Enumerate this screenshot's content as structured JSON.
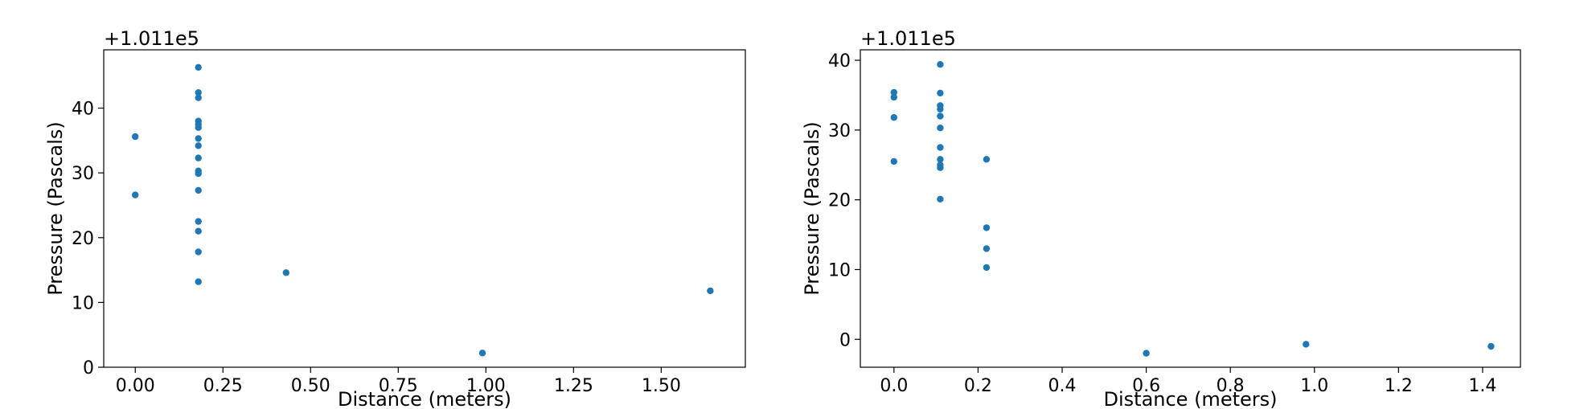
{
  "chart_data": [
    {
      "type": "scatter",
      "title": "",
      "xlabel": "Distance (meters)",
      "ylabel": "Pressure (Pascals)",
      "offset_text": "+1.011e5",
      "xlim": [
        -0.09,
        1.74
      ],
      "ylim": [
        0,
        49
      ],
      "xticks": [
        0.0,
        0.25,
        0.5,
        0.75,
        1.0,
        1.25,
        1.5
      ],
      "xtick_labels": [
        "0.00",
        "0.25",
        "0.50",
        "0.75",
        "1.00",
        "1.25",
        "1.50"
      ],
      "yticks": [
        0,
        10,
        20,
        30,
        40
      ],
      "ytick_labels": [
        "0",
        "10",
        "20",
        "30",
        "40"
      ],
      "color": "#1f77b4",
      "grid": false,
      "points": [
        {
          "x": 0.0,
          "y": 35.6
        },
        {
          "x": 0.0,
          "y": 26.6
        },
        {
          "x": 0.18,
          "y": 46.3
        },
        {
          "x": 0.18,
          "y": 42.4
        },
        {
          "x": 0.18,
          "y": 41.6
        },
        {
          "x": 0.18,
          "y": 38.0
        },
        {
          "x": 0.18,
          "y": 37.5
        },
        {
          "x": 0.18,
          "y": 37.0
        },
        {
          "x": 0.18,
          "y": 35.3
        },
        {
          "x": 0.18,
          "y": 34.2
        },
        {
          "x": 0.18,
          "y": 32.3
        },
        {
          "x": 0.18,
          "y": 30.3
        },
        {
          "x": 0.18,
          "y": 29.9
        },
        {
          "x": 0.18,
          "y": 27.3
        },
        {
          "x": 0.18,
          "y": 22.5
        },
        {
          "x": 0.18,
          "y": 21.0
        },
        {
          "x": 0.18,
          "y": 17.8
        },
        {
          "x": 0.18,
          "y": 13.2
        },
        {
          "x": 0.43,
          "y": 14.6
        },
        {
          "x": 0.99,
          "y": 2.2
        },
        {
          "x": 1.64,
          "y": 11.8
        }
      ]
    },
    {
      "type": "scatter",
      "title": "",
      "xlabel": "Distance (meters)",
      "ylabel": "Pressure (Pascals)",
      "offset_text": "+1.011e5",
      "xlim": [
        -0.08,
        1.49
      ],
      "ylim": [
        -4,
        41.5
      ],
      "xticks": [
        0.0,
        0.2,
        0.4,
        0.6,
        0.8,
        1.0,
        1.2,
        1.4
      ],
      "xtick_labels": [
        "0.0",
        "0.2",
        "0.4",
        "0.6",
        "0.8",
        "1.0",
        "1.2",
        "1.4"
      ],
      "yticks": [
        0,
        10,
        20,
        30,
        40
      ],
      "ytick_labels": [
        "0",
        "10",
        "20",
        "30",
        "40"
      ],
      "color": "#1f77b4",
      "grid": false,
      "points": [
        {
          "x": 0.0,
          "y": 35.4
        },
        {
          "x": 0.0,
          "y": 34.7
        },
        {
          "x": 0.0,
          "y": 31.8
        },
        {
          "x": 0.0,
          "y": 25.5
        },
        {
          "x": 0.11,
          "y": 39.4
        },
        {
          "x": 0.11,
          "y": 35.3
        },
        {
          "x": 0.11,
          "y": 33.5
        },
        {
          "x": 0.11,
          "y": 33.0
        },
        {
          "x": 0.11,
          "y": 32.0
        },
        {
          "x": 0.11,
          "y": 30.3
        },
        {
          "x": 0.11,
          "y": 27.5
        },
        {
          "x": 0.11,
          "y": 25.8
        },
        {
          "x": 0.11,
          "y": 25.0
        },
        {
          "x": 0.11,
          "y": 24.6
        },
        {
          "x": 0.11,
          "y": 20.1
        },
        {
          "x": 0.22,
          "y": 25.8
        },
        {
          "x": 0.22,
          "y": 16.0
        },
        {
          "x": 0.22,
          "y": 13.0
        },
        {
          "x": 0.22,
          "y": 10.3
        },
        {
          "x": 0.6,
          "y": -2.0
        },
        {
          "x": 0.98,
          "y": -0.7
        },
        {
          "x": 1.42,
          "y": -1.0
        }
      ]
    }
  ]
}
